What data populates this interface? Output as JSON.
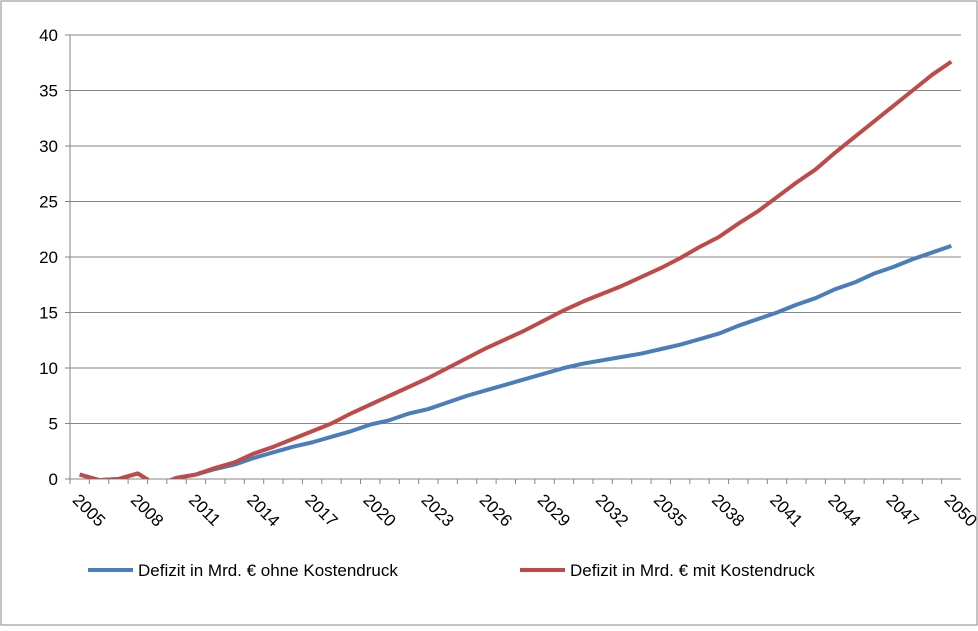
{
  "chart_data": {
    "type": "line",
    "categories": [
      "2005",
      null,
      null,
      "2008",
      null,
      null,
      "2011",
      null,
      null,
      "2014",
      null,
      null,
      "2017",
      null,
      null,
      "2020",
      null,
      null,
      "2023",
      null,
      null,
      "2026",
      null,
      null,
      "2029",
      null,
      null,
      "2032",
      null,
      null,
      "2035",
      null,
      null,
      "2038",
      null,
      null,
      "2041",
      null,
      null,
      "2044",
      null,
      null,
      "2047",
      null,
      null,
      "2050"
    ],
    "series": [
      {
        "name": "Defizit in Mrd. € ohne Kostendruck",
        "color": "#4a7ebb",
        "values": [
          0.4,
          -0.1,
          0.0,
          0.5,
          -0.6,
          0.1,
          0.4,
          0.9,
          1.3,
          1.9,
          2.4,
          2.9,
          3.3,
          3.8,
          4.3,
          4.9,
          5.3,
          5.9,
          6.3,
          6.9,
          7.5,
          8.0,
          8.5,
          9.0,
          9.5,
          10.0,
          10.4,
          10.7,
          11.0,
          11.3,
          11.7,
          12.1,
          12.6,
          13.1,
          13.8,
          14.4,
          15.0,
          15.7,
          16.3,
          17.1,
          17.7,
          18.5,
          19.1,
          19.8,
          20.4,
          21.0
        ]
      },
      {
        "name": "Defizit in Mrd. € mit Kostendruck",
        "color": "#be4b48",
        "values": [
          0.4,
          -0.1,
          0.0,
          0.5,
          -0.6,
          0.1,
          0.4,
          1.0,
          1.5,
          2.3,
          2.9,
          3.6,
          4.3,
          5.0,
          5.9,
          6.7,
          7.5,
          8.3,
          9.1,
          10.0,
          10.9,
          11.8,
          12.6,
          13.4,
          14.3,
          15.2,
          16.0,
          16.7,
          17.4,
          18.2,
          19.0,
          19.9,
          20.9,
          21.8,
          23.0,
          24.1,
          25.4,
          26.7,
          27.9,
          29.4,
          30.8,
          32.2,
          33.6,
          35.0,
          36.4,
          37.6
        ]
      }
    ],
    "ylim": [
      0,
      40
    ],
    "yticks": [
      0,
      5,
      10,
      15,
      20,
      25,
      30,
      35,
      40
    ],
    "grid": true,
    "legend": "bottom"
  }
}
